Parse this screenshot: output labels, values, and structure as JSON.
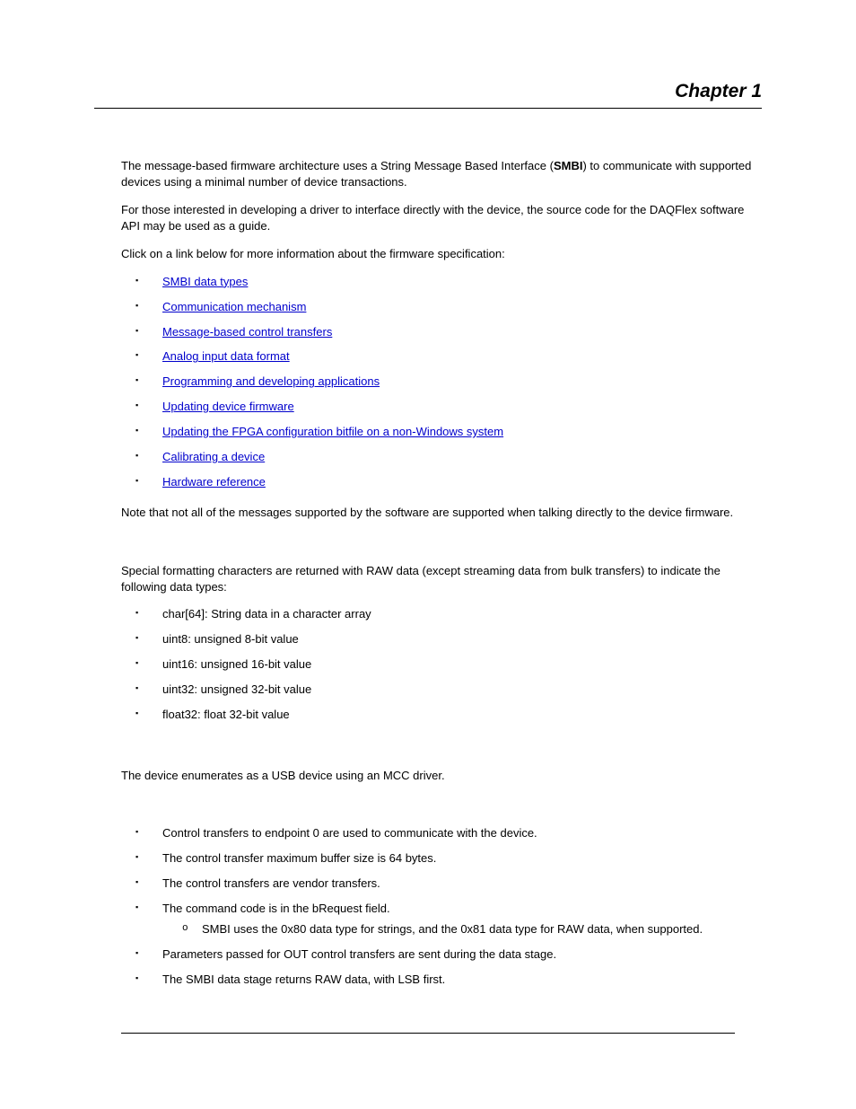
{
  "header": {
    "chapter": "Chapter 1"
  },
  "intro": {
    "p1a": "The message-based firmware architecture uses a String Message Based Interface (",
    "p1b": "SMBI",
    "p1c": ") to communicate with supported devices using a minimal number of device transactions.",
    "p2": "For those interested in developing a driver to interface directly with the device, the source code for the DAQFlex software API may be used as a guide.",
    "p3": "Click on a link below for more information about the firmware specification:"
  },
  "links": [
    "SMBI data types",
    "Communication mechanism",
    "Message-based control transfers",
    "Analog input data format",
    "Programming and developing applications",
    "Updating device firmware",
    "Updating the FPGA configuration bitfile on a non-Windows system",
    "Calibrating a device",
    "Hardware reference"
  ],
  "note": "Note that not all of the messages supported by the software are supported when talking directly to the device firmware.",
  "datatypes": {
    "intro": "Special formatting characters are returned with RAW data (except streaming data from bulk transfers) to indicate the following data types:",
    "items": [
      "char[64]: String data in a character array",
      "uint8: unsigned 8-bit value",
      "uint16: unsigned 16-bit value",
      "uint32: unsigned 32-bit value",
      "float32: float 32-bit value"
    ]
  },
  "usb": {
    "intro": "The device enumerates as a USB device using an MCC driver.",
    "items": [
      "Control transfers to endpoint 0 are used to communicate with the device.",
      "The control transfer maximum buffer size is 64 bytes.",
      "The control transfers are vendor transfers.",
      "The command code is in the bRequest field.",
      "Parameters passed for OUT control transfers are sent during the data stage.",
      "The SMBI data stage returns RAW data, with LSB first."
    ],
    "sub": "SMBI uses the 0x80 data type for strings, and the 0x81 data type for RAW data, when supported."
  }
}
